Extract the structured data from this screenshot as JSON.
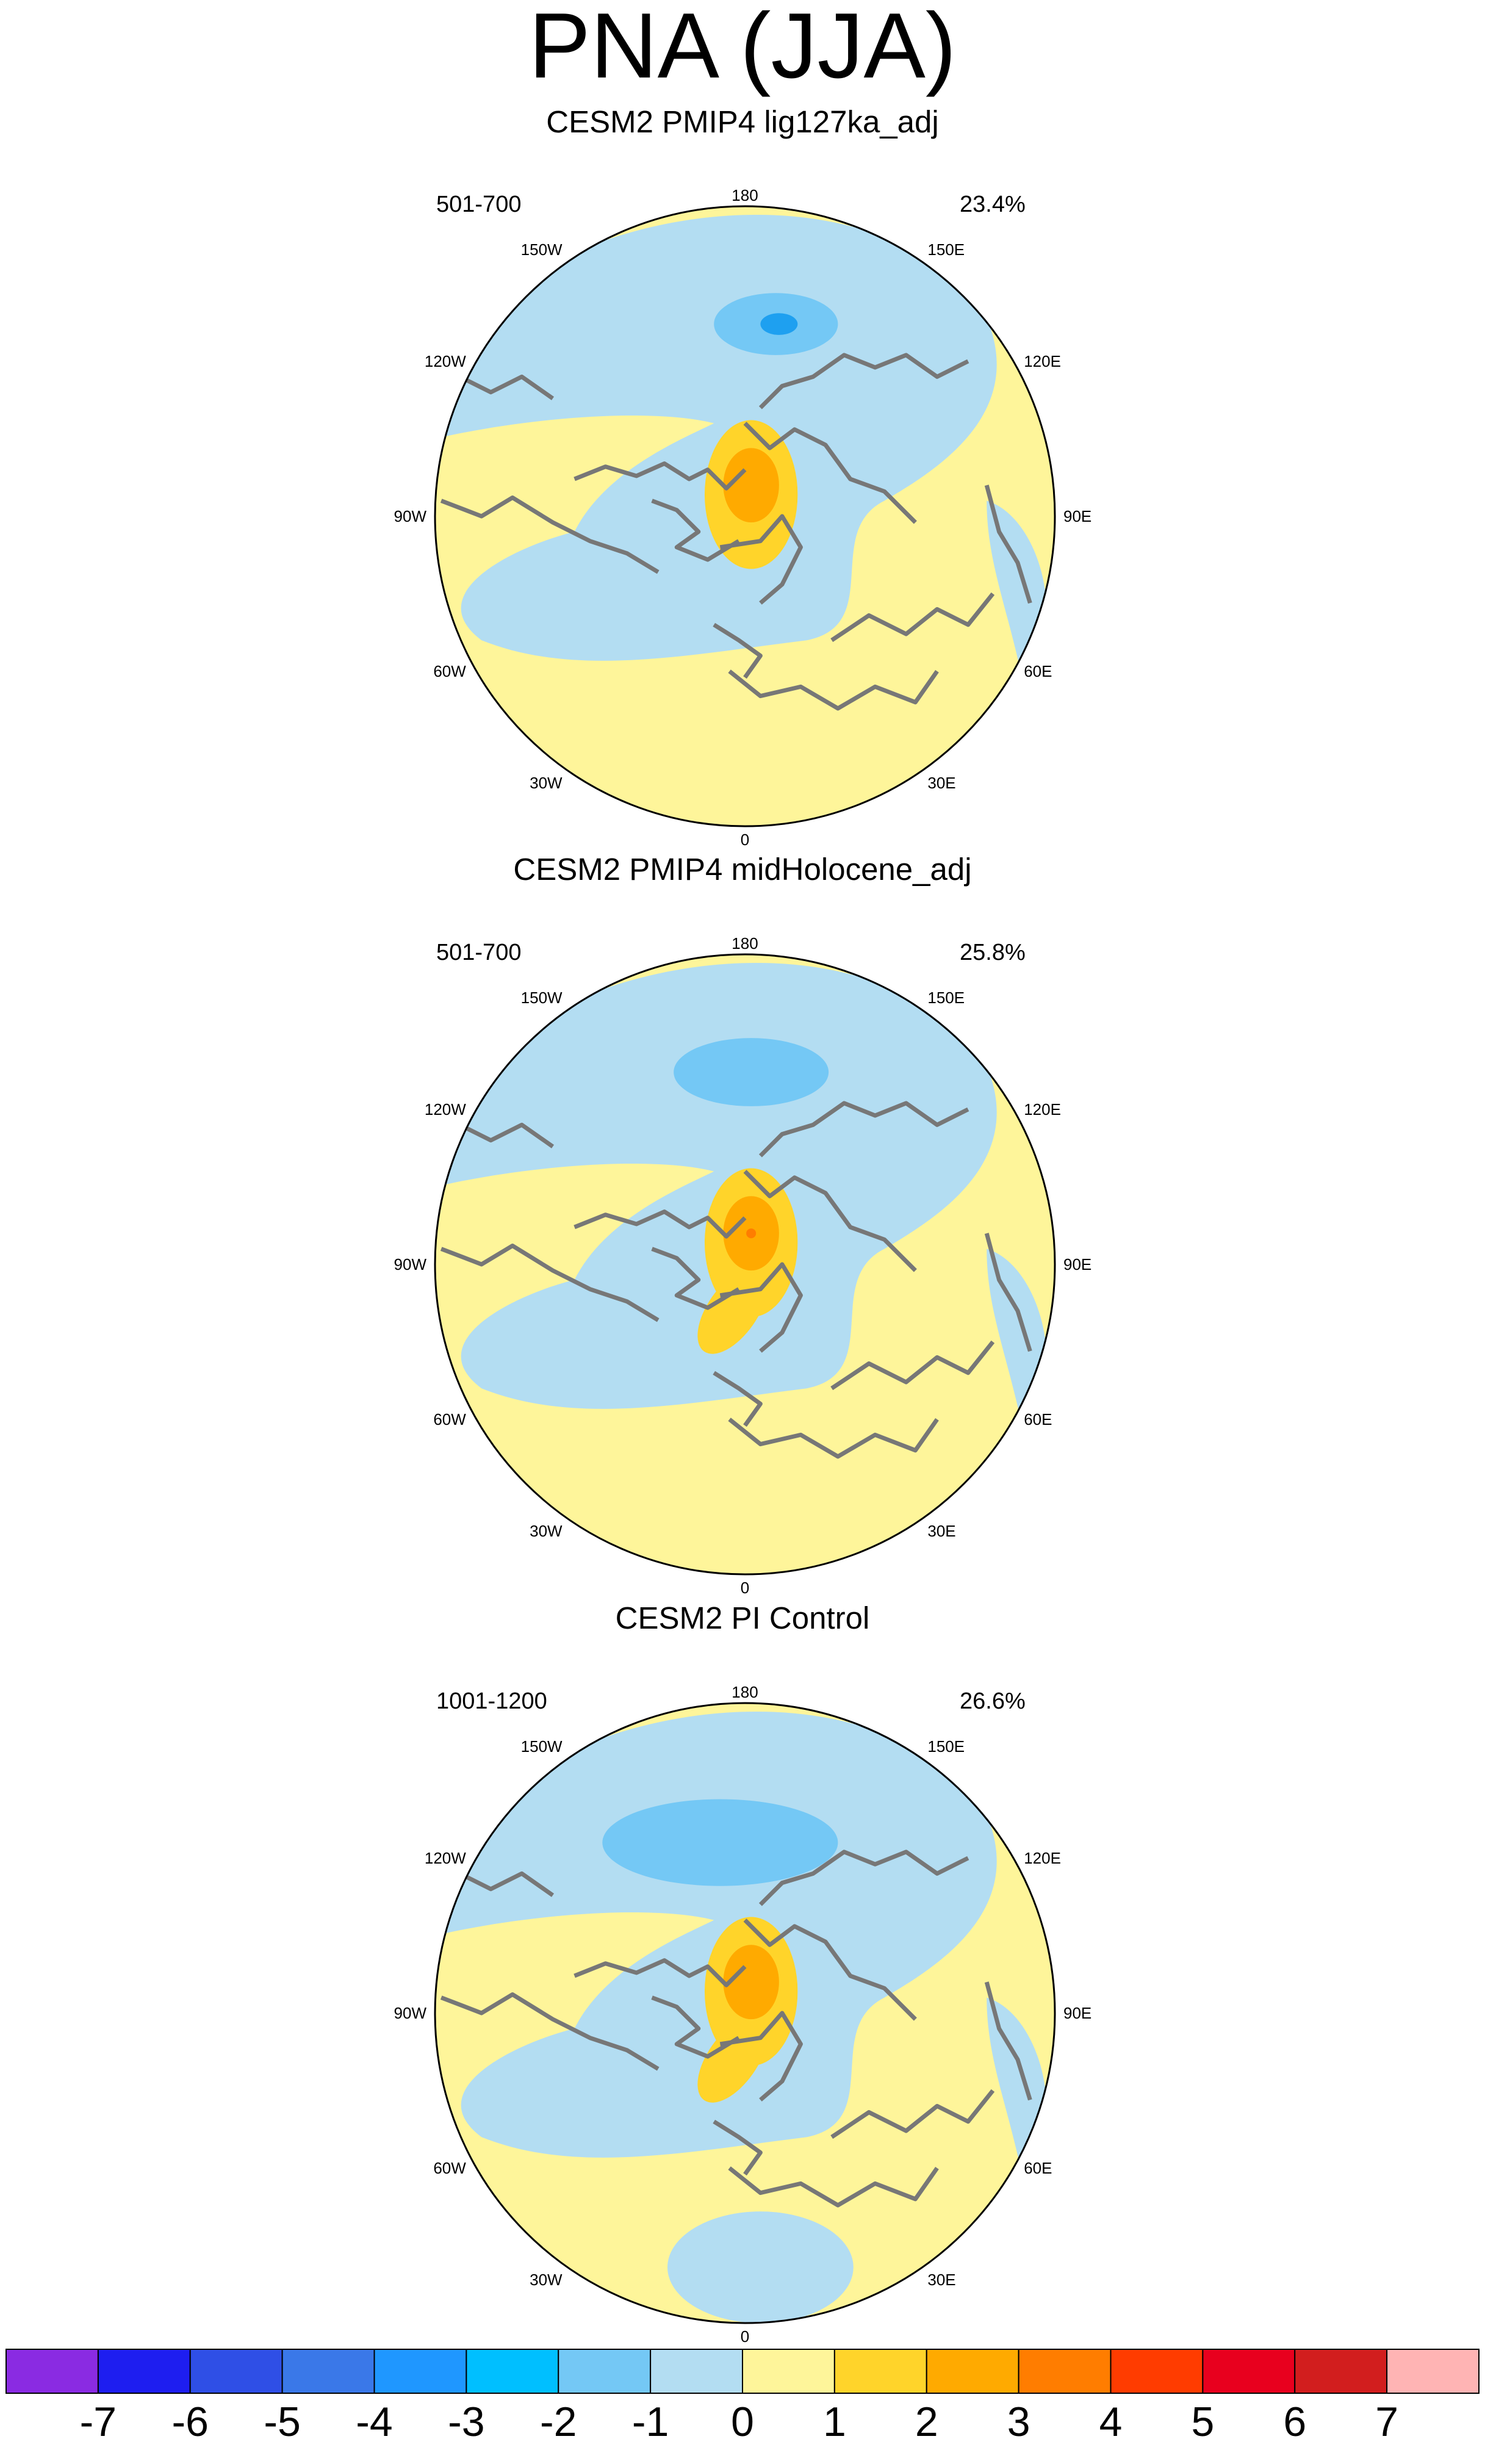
{
  "title": "PNA (JJA)",
  "panels": [
    {
      "title": "CESM2 PMIP4 lig127ka_adj",
      "period": "501-700",
      "variance": "23.4%"
    },
    {
      "title": "CESM2 PMIP4 midHolocene_adj",
      "period": "501-700",
      "variance": "25.8%"
    },
    {
      "title": "CESM2 PI Control",
      "period": "1001-1200",
      "variance": "26.6%"
    }
  ],
  "longitude_labels": {
    "top": "180",
    "bottom": "0",
    "upper_left": "150W",
    "upper_right": "150E",
    "mid_upper_left": "120W",
    "mid_upper_right": "120E",
    "left": "90W",
    "right": "90E",
    "mid_lower_left": "60W",
    "mid_lower_right": "60E",
    "lower_left": "30W",
    "lower_right": "30E"
  },
  "colorbar": {
    "labels": [
      "-7",
      "-6",
      "-5",
      "-4",
      "-3",
      "-2",
      "-1",
      "0",
      "1",
      "2",
      "3",
      "4",
      "5",
      "6",
      "7"
    ],
    "colors": [
      "#8a2be2",
      "#1e1ef0",
      "#2f4fe6",
      "#3a78e8",
      "#1f97ff",
      "#00bfff",
      "#74c8f5",
      "#b3ddf2",
      "#fef59a",
      "#ffd42a",
      "#ffaa00",
      "#ff7d00",
      "#ff3c00",
      "#e8001e",
      "#d21e1e",
      "#ffb4b4"
    ]
  },
  "palette": {
    "light_blue": "#b3ddf2",
    "blue1": "#74c8f5",
    "blue2": "#1ea0f0",
    "light_yellow": "#fef59a",
    "yellow": "#ffd42a",
    "orange": "#ffaa00",
    "orange2": "#ff7d00",
    "coast": "#777777"
  }
}
